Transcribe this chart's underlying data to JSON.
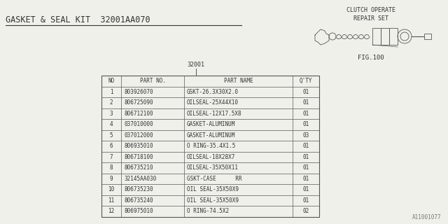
{
  "title": "GASKET & SEAL KIT  32001AA070",
  "fig_label": "FIG.100",
  "clutch_label": "CLUTCH OPERATE\nREPAIR SET",
  "part_label": "32001",
  "watermark": "A11001077",
  "bg_color": "#f0f0eb",
  "table_headers": [
    "NO",
    "PART NO.",
    "PART NAME",
    "Q'TY"
  ],
  "rows": [
    [
      "1",
      "803926070",
      "GSKT-26.3X30X2.0",
      "01"
    ],
    [
      "2",
      "806725090",
      "OILSEAL-25X44X10",
      "01"
    ],
    [
      "3",
      "806712100",
      "OILSEAL-12X17.5X8",
      "01"
    ],
    [
      "4",
      "037010000",
      "GASKET-ALUMINUM",
      "01"
    ],
    [
      "5",
      "037012000",
      "GASKET-ALUMINUM",
      "03"
    ],
    [
      "6",
      "806935010",
      "O RING-35.4X1.5",
      "01"
    ],
    [
      "7",
      "806718100",
      "OILSEAL-18X28X7",
      "01"
    ],
    [
      "8",
      "806735210",
      "OILSEAL-35X50X11",
      "01"
    ],
    [
      "9",
      "32145AA030",
      "GSKT-CASE      RR",
      "01"
    ],
    [
      "10",
      "806735230",
      "OIL SEAL-35X50X9",
      "01"
    ],
    [
      "11",
      "806735240",
      "OIL SEAL-35X50X9",
      "01"
    ],
    [
      "12",
      "806975010",
      "O RING-74.5X2",
      "02"
    ]
  ],
  "font_size": 5.5,
  "title_font_size": 8.5
}
